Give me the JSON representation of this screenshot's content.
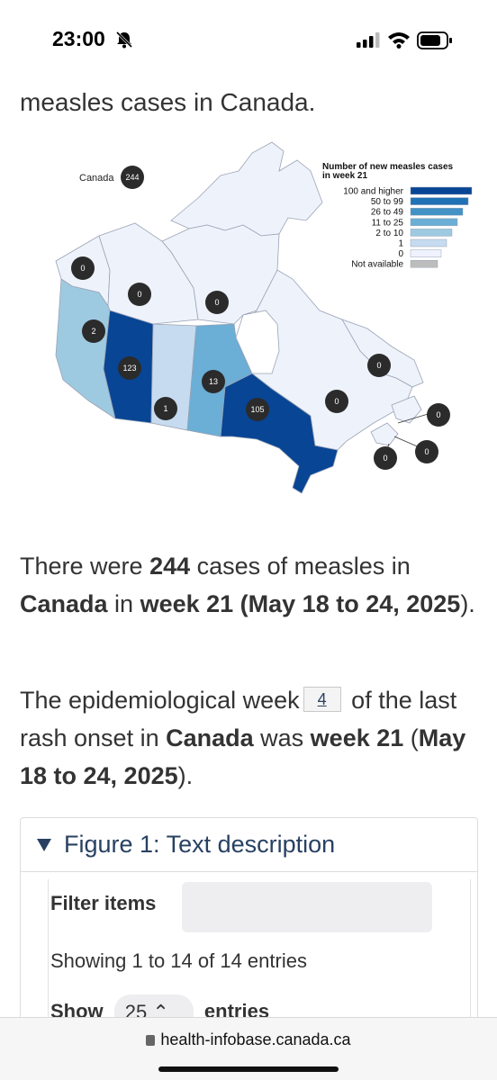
{
  "status_bar": {
    "time": "23:00"
  },
  "heading_fragment": "measles cases in Canada.",
  "map": {
    "canada_label": "Canada",
    "canada_total": "244",
    "legend_title_line1": "Number of new measles cases",
    "legend_title_line2": "in week 21",
    "legend": [
      {
        "label": "100 and higher",
        "color": "#084594"
      },
      {
        "label": "50 to 99",
        "color": "#2171b5"
      },
      {
        "label": "26 to 49",
        "color": "#4292c6"
      },
      {
        "label": "11 to 25",
        "color": "#6baed6"
      },
      {
        "label": "2 to 10",
        "color": "#9ecae1"
      },
      {
        "label": "1",
        "color": "#c6dbef"
      },
      {
        "label": "0",
        "color": "#eff3ff"
      },
      {
        "label": "Not available",
        "color": "#bdbdbd"
      }
    ],
    "regions": [
      {
        "name": "Yukon",
        "count": "0"
      },
      {
        "name": "Northwest Territories",
        "count": "0"
      },
      {
        "name": "Nunavut",
        "count": "0"
      },
      {
        "name": "British Columbia",
        "count": "2"
      },
      {
        "name": "Alberta",
        "count": "123"
      },
      {
        "name": "Saskatchewan",
        "count": "1"
      },
      {
        "name": "Manitoba",
        "count": "13"
      },
      {
        "name": "Ontario",
        "count": "105"
      },
      {
        "name": "Quebec",
        "count": "0"
      },
      {
        "name": "Newfoundland and Labrador",
        "count": "0"
      },
      {
        "name": "Prince Edward Island",
        "count": "0"
      },
      {
        "name": "Nova Scotia",
        "count": "0"
      },
      {
        "name": "New Brunswick",
        "count": "0"
      }
    ]
  },
  "para1": {
    "t1": "There were ",
    "b1": "244",
    "t2": " cases of measles in ",
    "b2": "Canada",
    "t3": " in ",
    "b3": "week 21 (May 18 to 24, 2025",
    "t4": ")."
  },
  "para2": {
    "t1": "The epidemiological week",
    "footnote": "4",
    "t2": " of the last rash onset in ",
    "b1": "Canada",
    "t3": " was ",
    "b2": "week 21",
    "t4": " (",
    "b3": "May 18 to 24, 2025",
    "t5": ")."
  },
  "details": {
    "summary": "Figure 1: Text description",
    "filter_label": "Filter items",
    "filter_placeholder": "",
    "showing": "Showing 1 to 14 of 14 entries",
    "show_label": "Show",
    "show_value": "25",
    "entries_label": "entries"
  },
  "url_bar": {
    "url": "health-infobase.canada.ca"
  }
}
